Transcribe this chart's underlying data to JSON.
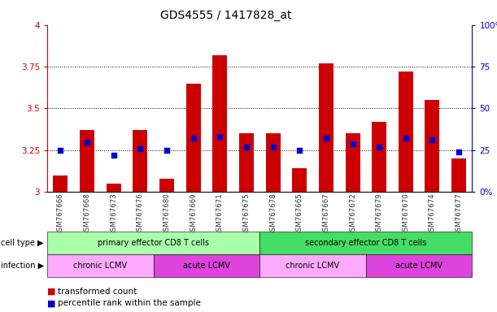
{
  "title": "GDS4555 / 1417828_at",
  "samples": [
    "GSM767666",
    "GSM767668",
    "GSM767673",
    "GSM767676",
    "GSM767680",
    "GSM767669",
    "GSM767671",
    "GSM767675",
    "GSM767678",
    "GSM767665",
    "GSM767667",
    "GSM767672",
    "GSM767679",
    "GSM767670",
    "GSM767674",
    "GSM767677"
  ],
  "bar_values": [
    3.1,
    3.37,
    3.05,
    3.37,
    3.08,
    3.65,
    3.82,
    3.35,
    3.35,
    3.14,
    3.77,
    3.35,
    3.42,
    3.72,
    3.55,
    3.2
  ],
  "percentile_values": [
    25,
    30,
    22,
    26,
    25,
    32,
    33,
    27,
    27,
    25,
    32,
    29,
    27,
    32,
    31,
    24
  ],
  "ylim": [
    3.0,
    4.0
  ],
  "y2lim": [
    0,
    100
  ],
  "yticks": [
    3.0,
    3.25,
    3.5,
    3.75,
    4.0
  ],
  "y2ticks": [
    0,
    25,
    50,
    75,
    100
  ],
  "ytick_labels": [
    "3",
    "3.25",
    "3.5",
    "3.75",
    "4"
  ],
  "y2tick_labels": [
    "0%",
    "25",
    "50",
    "75",
    "100%"
  ],
  "bar_color": "#cc0000",
  "dot_color": "#0000cc",
  "bar_bottom": 3.0,
  "cell_type_groups": [
    {
      "label": "primary effector CD8 T cells",
      "start": 0,
      "end": 8,
      "color": "#aaffaa"
    },
    {
      "label": "secondary effector CD8 T cells",
      "start": 8,
      "end": 16,
      "color": "#44dd66"
    }
  ],
  "infection_groups": [
    {
      "label": "chronic LCMV",
      "start": 0,
      "end": 4,
      "color": "#ffaaff"
    },
    {
      "label": "acute LCMV",
      "start": 4,
      "end": 8,
      "color": "#dd44dd"
    },
    {
      "label": "chronic LCMV",
      "start": 8,
      "end": 12,
      "color": "#ffaaff"
    },
    {
      "label": "acute LCMV",
      "start": 12,
      "end": 16,
      "color": "#dd44dd"
    }
  ],
  "legend_items": [
    {
      "label": "transformed count",
      "color": "#cc0000"
    },
    {
      "label": "percentile rank within the sample",
      "color": "#0000cc"
    }
  ],
  "title_fontsize": 10,
  "tick_fontsize": 7.5,
  "bar_width": 0.55
}
